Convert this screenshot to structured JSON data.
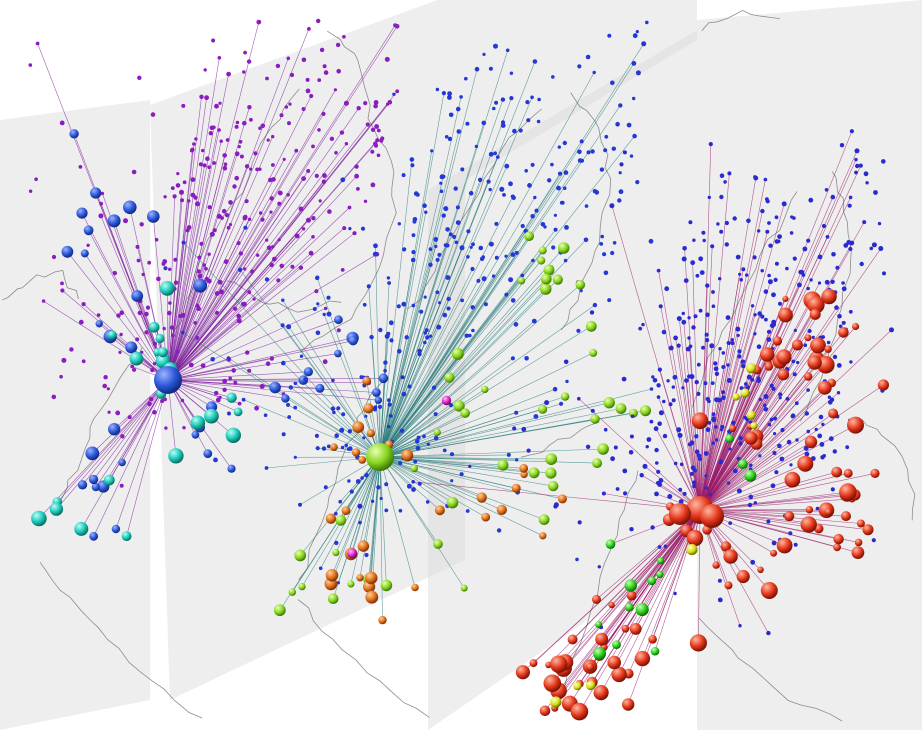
{
  "scene": {
    "background_color": "#ffffff",
    "plane_color": "#d9d9d9",
    "coastline_color": "#8d8d8d",
    "layers": [
      {
        "id": "layer-1",
        "small_node_color": "#8a1cc0",
        "edge_color": "#7a1a9a",
        "hub_color": "#1f4fd6",
        "node_classes": [
          {
            "name": "hub",
            "color": "#1f4fd6",
            "count": 1
          },
          {
            "name": "blue",
            "color": "#2a56d8",
            "count": 40
          },
          {
            "name": "cyan",
            "color": "#19c6b6",
            "count": 22
          },
          {
            "name": "purple-small",
            "color": "#8a1cc0",
            "count": 340
          }
        ]
      },
      {
        "id": "layer-2",
        "small_node_color": "#2438d6",
        "edge_color": "#2a7a7a",
        "hub_color": "#7ad21a",
        "node_classes": [
          {
            "name": "hub",
            "color": "#7ad21a",
            "count": 1
          },
          {
            "name": "green",
            "color": "#86d41e",
            "count": 48
          },
          {
            "name": "orange",
            "color": "#e07018",
            "count": 30
          },
          {
            "name": "magenta",
            "color": "#e020c8",
            "count": 2
          },
          {
            "name": "blue-small",
            "color": "#2438d6",
            "count": 360
          }
        ]
      },
      {
        "id": "layer-3",
        "small_node_color": "#2a2ad0",
        "edge_color": "#9a1a6a",
        "hub_color": "#e03010",
        "node_classes": [
          {
            "name": "hub",
            "color": "#e03010",
            "count": 1
          },
          {
            "name": "red",
            "color": "#e3361a",
            "count": 110
          },
          {
            "name": "green",
            "color": "#2ad01a",
            "count": 14
          },
          {
            "name": "yellow",
            "color": "#d8e010",
            "count": 10
          },
          {
            "name": "blue-small",
            "color": "#2a2ad0",
            "count": 420
          }
        ]
      }
    ]
  }
}
